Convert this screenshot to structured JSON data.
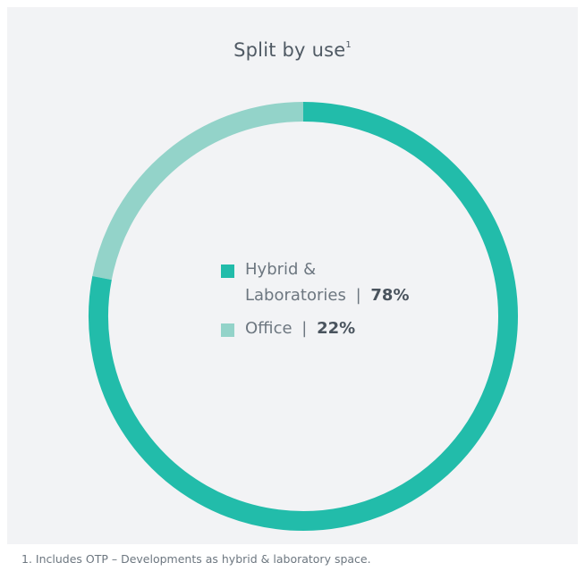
{
  "title": "Split by use",
  "title_footnote_marker": "1",
  "chart_data": {
    "type": "pie",
    "variant": "donut",
    "title": "Split by use",
    "categories": [
      "Hybrid & Laboratories",
      "Office"
    ],
    "values": [
      78,
      22
    ],
    "unit": "%",
    "colors": [
      "#22bcaa",
      "#93d3c9"
    ],
    "legend_placement": "center"
  },
  "legend": {
    "hybrid": {
      "line1": "Hybrid &",
      "line2": "Laboratories",
      "separator": "|",
      "value": "78%",
      "color": "#22bcaa"
    },
    "office": {
      "label": "Office",
      "separator": "|",
      "value": "22%",
      "color": "#93d3c9"
    }
  },
  "footnote": "1.   Includes OTP – Developments as hybrid & laboratory space."
}
